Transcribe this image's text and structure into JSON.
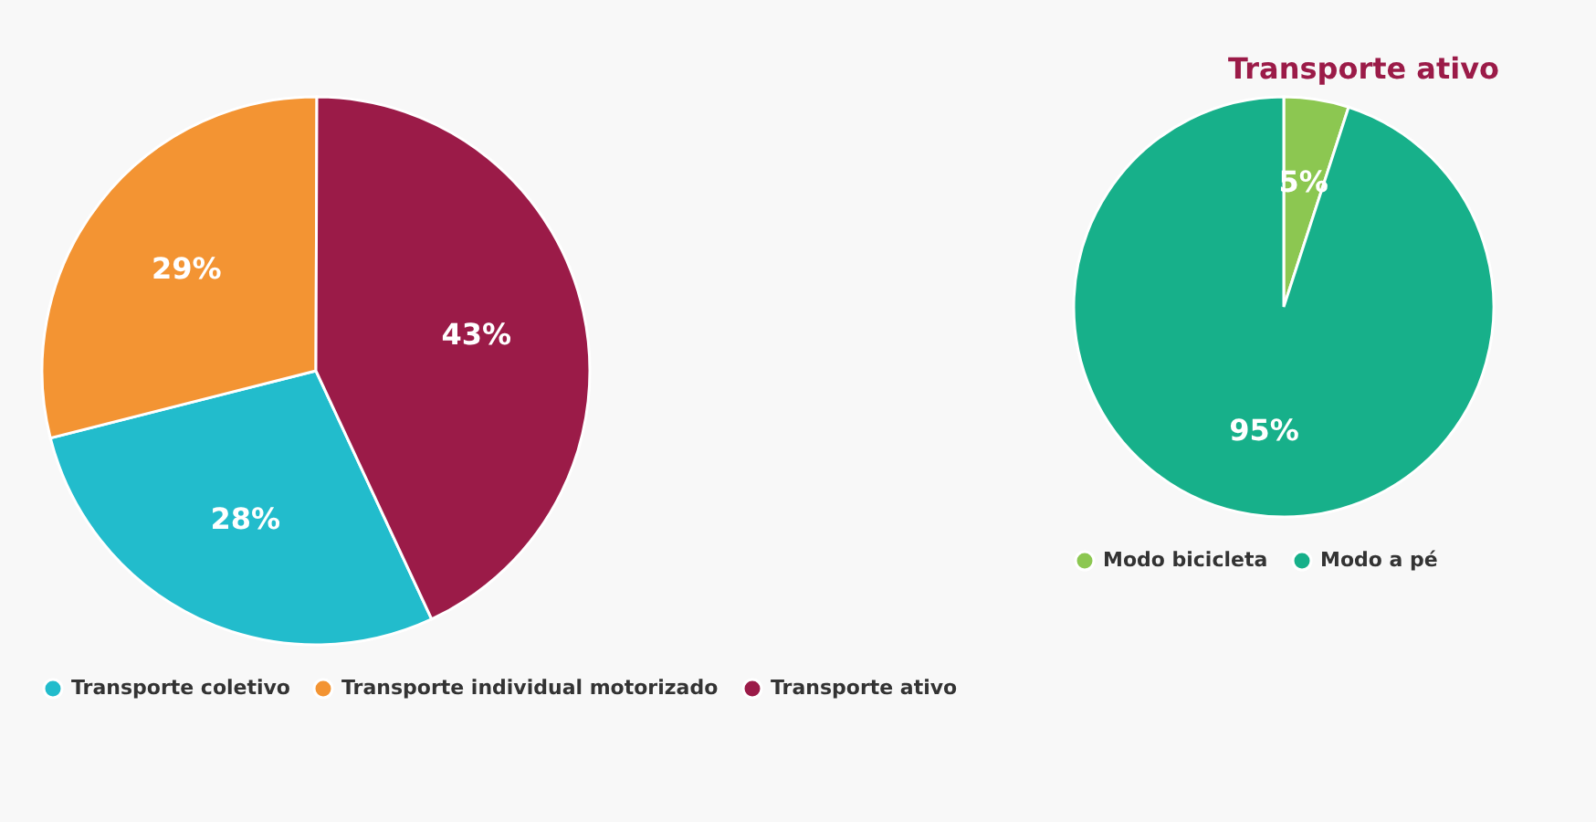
{
  "chart_data": [
    {
      "type": "pie",
      "categories": [
        "Transporte coletivo",
        "Transporte individual motorizado",
        "Transporte ativo"
      ],
      "values": [
        28,
        29,
        43
      ],
      "colors": [
        "#22bccc",
        "#f39433",
        "#9b1b48"
      ],
      "value_labels": [
        "28%",
        "29%",
        "43%"
      ],
      "legend": "bottom"
    },
    {
      "type": "pie",
      "title": "Transporte ativo",
      "categories": [
        "Modo bicicleta",
        "Modo a pé"
      ],
      "values": [
        5,
        95
      ],
      "colors": [
        "#8cc751",
        "#17b08a"
      ],
      "value_labels": [
        "5%",
        "95%"
      ],
      "legend": "bottom"
    }
  ]
}
